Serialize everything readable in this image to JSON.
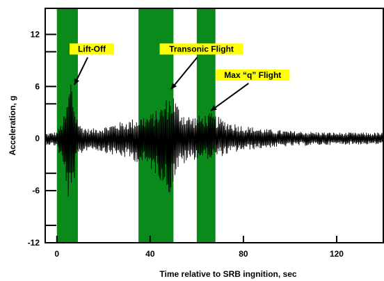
{
  "chart_data": {
    "type": "line",
    "xlabel": "Time relative to SRB ingnition, sec",
    "ylabel": "Acceleration, g",
    "xlim": [
      -5,
      140
    ],
    "ylim": [
      -12,
      15
    ],
    "x_ticks": [
      0,
      40,
      80,
      120
    ],
    "x_tick_labels": [
      "0",
      "40",
      "80",
      "120"
    ],
    "y_ticks": [
      -12,
      -6,
      0,
      6,
      12
    ],
    "y_tick_labels": [
      "-12",
      "-6",
      "0",
      "6",
      "12"
    ],
    "y_minor_ticks": [
      -10,
      -4,
      4,
      10
    ],
    "shaded_regions": [
      {
        "start": 0,
        "end": 9,
        "color": "#0a8a1a"
      },
      {
        "start": 35,
        "end": 50,
        "color": "#0a8a1a"
      },
      {
        "start": 60,
        "end": 68,
        "color": "#0a8a1a"
      }
    ],
    "annotations": [
      {
        "text": "Lift-Off",
        "x": 7.5,
        "y": 6.2,
        "label_x": 15,
        "label_y": 10
      },
      {
        "text": "Transonic Flight",
        "x": 49,
        "y": 5.7,
        "label_x": 62,
        "label_y": 10
      },
      {
        "text": "Max “q” Flight",
        "x": 66,
        "y": 3.2,
        "label_x": 84,
        "label_y": 7
      }
    ],
    "signal": {
      "color": "#000000",
      "envelope_x": [
        -5,
        0,
        2,
        4,
        5,
        6,
        7,
        8,
        10,
        14,
        20,
        25,
        30,
        35,
        40,
        44,
        46,
        48,
        50,
        52,
        55,
        58,
        62,
        66,
        70,
        75,
        80,
        90,
        100,
        110,
        120,
        130,
        140
      ],
      "envelope_upper": [
        0.6,
        0.8,
        1.8,
        3.5,
        5.5,
        7.5,
        5.2,
        3.2,
        1.6,
        1.1,
        1.4,
        1.8,
        2.1,
        2.5,
        2.8,
        3.5,
        4.3,
        5.0,
        5.2,
        3.9,
        2.9,
        2.6,
        2.7,
        3.0,
        2.4,
        1.9,
        1.5,
        1.1,
        0.9,
        0.8,
        0.7,
        0.7,
        0.7
      ],
      "envelope_lower": [
        -0.7,
        -0.9,
        -2.8,
        -5.2,
        -7.5,
        -8.0,
        -6.0,
        -3.6,
        -1.9,
        -1.2,
        -1.6,
        -2.0,
        -2.3,
        -2.8,
        -3.5,
        -4.6,
        -5.4,
        -6.8,
        -5.0,
        -3.6,
        -2.9,
        -2.5,
        -2.3,
        -2.4,
        -2.1,
        -1.7,
        -1.4,
        -1.1,
        -0.9,
        -0.8,
        -0.7,
        -0.7,
        -0.7
      ],
      "sample_step": 0.22
    }
  }
}
